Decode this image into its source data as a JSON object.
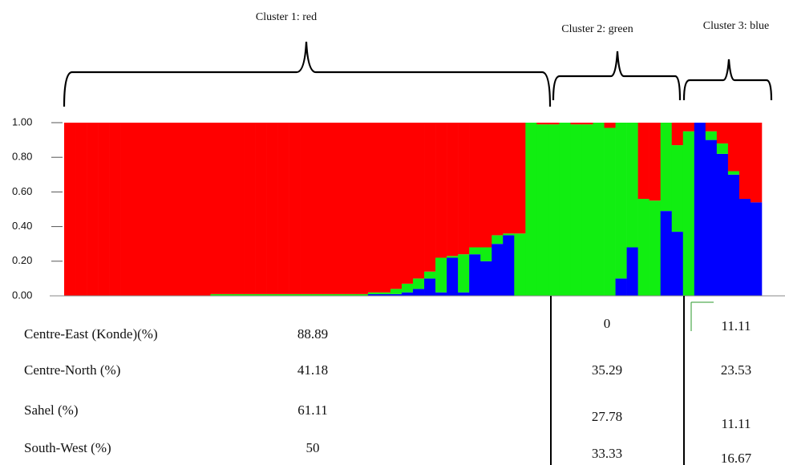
{
  "chart_data": {
    "type": "stacked_bar",
    "annotations": [
      "Cluster 1: red",
      "Cluster 2: green",
      "Cluster 3: blue"
    ],
    "ylim": [
      0,
      1
    ],
    "yticks": [
      {
        "value": 0,
        "label": "0.00"
      },
      {
        "value": 0.2,
        "label": "0.20"
      },
      {
        "value": 0.4,
        "label": "0.40"
      },
      {
        "value": 0.6,
        "label": "0.60"
      },
      {
        "value": 0.8,
        "label": "0.80"
      },
      {
        "value": 1,
        "label": "1.00"
      }
    ],
    "series": [
      {
        "color": "#0000ff",
        "values": [
          0,
          0,
          0,
          0,
          0,
          0,
          0,
          0,
          0,
          0,
          0,
          0,
          0,
          0,
          0,
          0,
          0,
          0,
          0,
          0,
          0,
          0,
          0,
          0,
          0,
          0,
          0,
          0.01,
          0.01,
          0.01,
          0.02,
          0.04,
          0.1,
          0.02,
          0.22,
          0.02,
          0.24,
          0.2,
          0.3,
          0.35,
          0,
          0,
          0,
          0,
          0,
          0,
          0,
          0,
          0,
          0.1,
          0.28,
          0,
          0,
          0.49,
          0.37,
          0,
          1,
          0.9,
          0.82,
          0.7,
          0.56,
          0.54
        ]
      },
      {
        "color": "#11ee11",
        "values": [
          0,
          0,
          0,
          0,
          0,
          0,
          0,
          0,
          0,
          0,
          0,
          0,
          0,
          0.01,
          0.01,
          0.01,
          0.01,
          0.01,
          0.01,
          0.01,
          0.01,
          0.01,
          0.01,
          0.01,
          0.01,
          0.01,
          0.01,
          0.01,
          0.01,
          0.03,
          0.05,
          0.06,
          0.04,
          0.2,
          0.01,
          0.22,
          0.04,
          0.08,
          0.05,
          0.01,
          0.36,
          1,
          0.99,
          0.99,
          1,
          0.99,
          0.99,
          1,
          0.97,
          0.9,
          0.72,
          0.56,
          0.55,
          0.51,
          0.5,
          0.95,
          0,
          0.05,
          0.06,
          0.02,
          0,
          0
        ]
      },
      {
        "color": "#ff0000",
        "values": [
          1,
          1,
          1,
          1,
          1,
          1,
          1,
          1,
          1,
          1,
          1,
          1,
          1,
          0.99,
          0.99,
          0.99,
          0.99,
          0.99,
          0.99,
          0.99,
          0.99,
          0.99,
          0.99,
          0.99,
          0.99,
          0.99,
          0.99,
          0.98,
          0.98,
          0.96,
          0.93,
          0.9,
          0.86,
          0.78,
          0.77,
          0.76,
          0.72,
          0.72,
          0.65,
          0.64,
          0.64,
          0,
          0.01,
          0.01,
          0,
          0.01,
          0.01,
          0,
          0.03,
          0,
          0,
          0.44,
          0.45,
          0,
          0.13,
          0.05,
          0,
          0.05,
          0.12,
          0.28,
          0.44,
          0.46
        ]
      }
    ]
  },
  "table": {
    "rows": [
      [
        "Centre-East (Konde)(%)",
        "88.89",
        "0",
        "11.11"
      ],
      [
        "Centre-North (%)",
        "41.18",
        "35.29",
        "23.53"
      ],
      [
        "Sahel (%)",
        "61.11",
        "27.78",
        "11.11"
      ],
      [
        "South-West (%)",
        "50",
        "33.33",
        "16.67"
      ]
    ]
  }
}
